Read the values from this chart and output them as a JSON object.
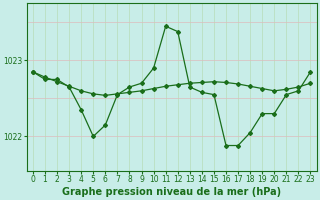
{
  "x": [
    0,
    1,
    2,
    3,
    4,
    5,
    6,
    7,
    8,
    9,
    10,
    11,
    12,
    13,
    14,
    15,
    16,
    17,
    18,
    19,
    20,
    21,
    22,
    23
  ],
  "line1": [
    1022.85,
    1022.75,
    1022.75,
    1022.65,
    1022.35,
    1022.0,
    1022.15,
    1022.55,
    1022.65,
    1022.7,
    1022.9,
    1023.45,
    1023.38,
    1022.65,
    1022.58,
    1022.55,
    1021.88,
    1021.88,
    1022.05,
    1022.3,
    1022.3,
    1022.55,
    1022.6,
    1022.85
  ],
  "line2": [
    1022.85,
    1022.78,
    1022.72,
    1022.66,
    1022.6,
    1022.56,
    1022.54,
    1022.56,
    1022.58,
    1022.6,
    1022.63,
    1022.66,
    1022.68,
    1022.7,
    1022.71,
    1022.72,
    1022.71,
    1022.69,
    1022.66,
    1022.63,
    1022.6,
    1022.62,
    1022.65,
    1022.7
  ],
  "line_color": "#1a6e1a",
  "bg_color": "#c8ede8",
  "grid_color_h": "#ddbcbc",
  "grid_color_v": "#b8dcb8",
  "ytick_vals": [
    1022,
    1023
  ],
  "ytick_labels": [
    "1022",
    "1023"
  ],
  "xtick_labels": [
    "0",
    "1",
    "2",
    "3",
    "4",
    "5",
    "6",
    "7",
    "8",
    "9",
    "10",
    "11",
    "12",
    "13",
    "14",
    "15",
    "16",
    "17",
    "18",
    "19",
    "20",
    "21",
    "22",
    "23"
  ],
  "xlabel_label": "Graphe pression niveau de la mer (hPa)",
  "xlim": [
    -0.5,
    23.5
  ],
  "ylim": [
    1021.55,
    1023.75
  ],
  "marker": "D",
  "markersize": 2.0,
  "linewidth": 0.9,
  "tick_fontsize": 5.5,
  "xlabel_fontsize": 7.0
}
